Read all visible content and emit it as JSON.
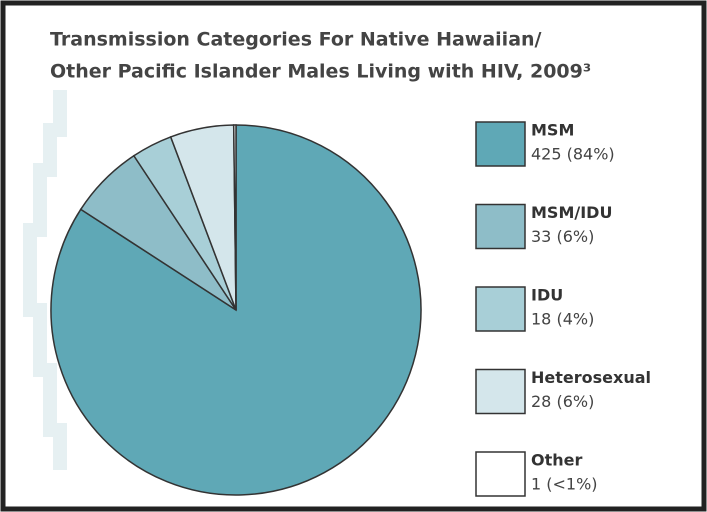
{
  "chart_data": {
    "type": "pie",
    "title": [
      "Transmission Categories For Native Hawaiian/",
      "Other Pacific Islander Males Living with HIV, 2009³"
    ],
    "categories": [
      "MSM",
      "MSM/IDU",
      "IDU",
      "Heterosexual",
      "Other"
    ],
    "values": [
      425,
      33,
      18,
      28,
      1
    ],
    "value_labels": [
      "425 (84%)",
      "33 (6%)",
      "18 (4%)",
      "28 (6%)",
      "1 (<1%)"
    ],
    "colors": [
      "#5fa8b6",
      "#8ebdc8",
      "#a8cfd7",
      "#d4e6eb",
      "#ffffff"
    ]
  }
}
